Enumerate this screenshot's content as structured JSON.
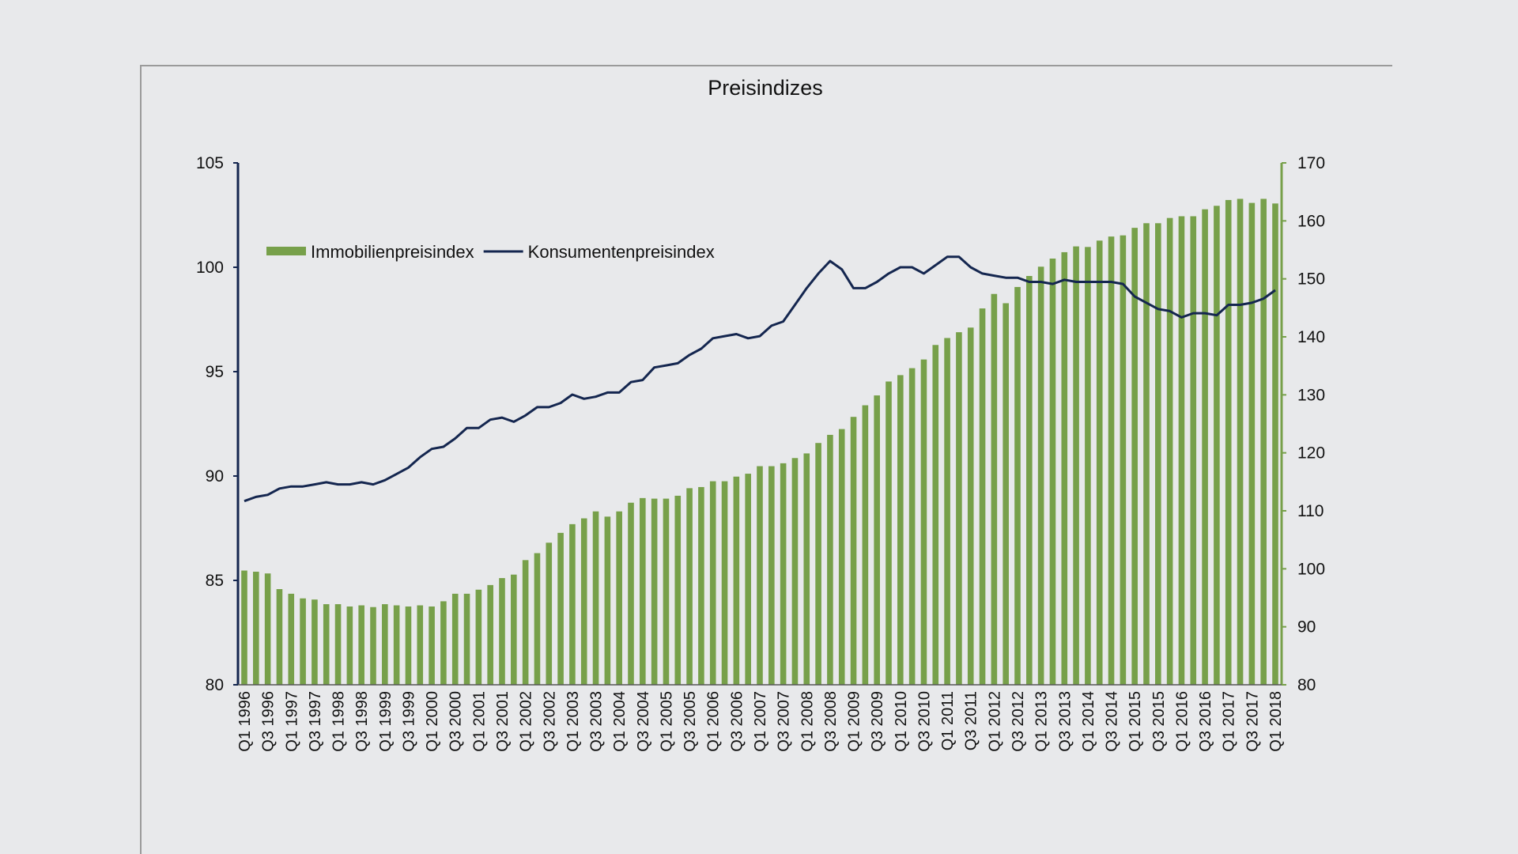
{
  "chart_data": {
    "type": "bar",
    "title": "Preisindizes",
    "categories": [
      "Q1 1996",
      null,
      "Q3 1996",
      null,
      "Q1 1997",
      null,
      "Q3 1997",
      null,
      "Q1 1998",
      null,
      "Q3 1998",
      null,
      "Q1 1999",
      null,
      "Q3 1999",
      null,
      "Q1 2000",
      null,
      "Q3 2000",
      null,
      "Q1 2001",
      null,
      "Q3 2001",
      null,
      "Q1 2002",
      null,
      "Q3 2002",
      null,
      "Q1 2003",
      null,
      "Q3 2003",
      null,
      "Q1 2004",
      null,
      "Q3 2004",
      null,
      "Q1 2005",
      null,
      "Q3 2005",
      null,
      "Q1 2006",
      null,
      "Q3 2006",
      null,
      "Q1 2007",
      null,
      "Q3 2007",
      null,
      "Q1 2008",
      null,
      "Q3 2008",
      null,
      "Q1 2009",
      null,
      "Q3 2009",
      null,
      "Q1 2010",
      null,
      "Q3 2010",
      null,
      "Q1 2011",
      null,
      "Q3 2011",
      null,
      "Q1 2012",
      null,
      "Q3 2012",
      null,
      "Q1 2013",
      null,
      "Q3 2013",
      null,
      "Q1 2014",
      null,
      "Q3 2014",
      null,
      "Q1 2015",
      null,
      "Q3 2015",
      null,
      "Q1 2016",
      null,
      "Q3 2016",
      null,
      "Q1 2017",
      null,
      "Q3 2017",
      null,
      "Q1 2018"
    ],
    "series": [
      {
        "name": "Immobilienpreisindex",
        "type": "bar",
        "axis": "y2",
        "color": "#77a04a",
        "values": [
          99.7,
          99.5,
          99.2,
          96.5,
          95.7,
          94.9,
          94.7,
          93.9,
          93.9,
          93.5,
          93.7,
          93.4,
          93.9,
          93.7,
          93.5,
          93.7,
          93.5,
          94.4,
          95.7,
          95.7,
          96.4,
          97.2,
          98.4,
          99.0,
          101.5,
          102.7,
          104.5,
          106.2,
          107.7,
          108.7,
          109.9,
          109.0,
          109.9,
          111.4,
          112.2,
          112.1,
          112.1,
          112.6,
          113.9,
          114.1,
          115.1,
          115.1,
          115.9,
          116.4,
          117.7,
          117.7,
          118.2,
          119.1,
          119.9,
          121.7,
          123.1,
          124.1,
          126.2,
          128.2,
          129.9,
          132.3,
          133.4,
          134.6,
          136.1,
          138.6,
          139.8,
          140.8,
          141.6,
          144.9,
          147.4,
          145.8,
          148.6,
          150.5,
          152.1,
          153.5,
          154.6,
          155.6,
          155.5,
          156.6,
          157.3,
          157.5,
          158.8,
          159.6,
          159.6,
          160.5,
          160.8,
          160.8,
          162.0,
          162.6,
          163.6,
          163.8,
          163.1,
          163.8,
          163.0
        ]
      },
      {
        "name": "Konsumentenpreisindex",
        "type": "line",
        "color": "#14264f",
        "values": [
          88.8,
          89.0,
          89.1,
          89.4,
          89.5,
          89.5,
          89.6,
          89.7,
          89.6,
          89.6,
          89.7,
          89.6,
          89.8,
          90.1,
          90.4,
          90.9,
          91.3,
          91.4,
          91.8,
          92.3,
          92.3,
          92.7,
          92.8,
          92.6,
          92.9,
          93.3,
          93.3,
          93.5,
          93.9,
          93.7,
          93.8,
          94.0,
          94.0,
          94.5,
          94.6,
          95.2,
          95.3,
          95.4,
          95.8,
          96.1,
          96.6,
          96.7,
          96.8,
          96.6,
          96.7,
          97.2,
          97.4,
          98.2,
          99.0,
          99.7,
          100.3,
          99.9,
          99.0,
          99.0,
          99.3,
          99.7,
          100.0,
          100.0,
          99.7,
          100.1,
          100.5,
          100.5,
          100.0,
          99.7,
          99.6,
          99.5,
          99.5,
          99.3,
          99.3,
          99.2,
          99.4,
          99.3,
          99.3,
          99.3,
          99.3,
          99.2,
          98.6,
          98.3,
          98.0,
          97.9,
          97.6,
          97.8,
          97.8,
          97.7,
          98.2,
          98.2,
          98.3,
          98.5,
          98.9
        ]
      }
    ],
    "ylim": [
      80,
      105
    ],
    "yticks": [
      80,
      85,
      90,
      95,
      100,
      105
    ],
    "y2lim": [
      80,
      170
    ],
    "y2ticks": [
      80,
      90,
      100,
      110,
      120,
      130,
      140,
      150,
      160,
      170
    ],
    "legend": "upper left",
    "grid": false
  }
}
